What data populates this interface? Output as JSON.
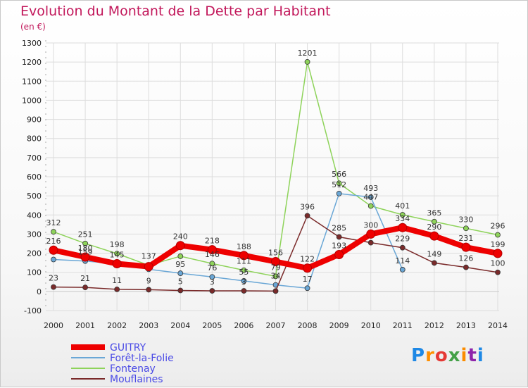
{
  "header": {
    "title": "Evolution du Montant de la Dette par Habitant",
    "subtitle": "(en €)"
  },
  "colors": {
    "title": "#c2185b",
    "axis_text": "#222222",
    "grid": "#dddddd"
  },
  "logo": {
    "text": "Proxiti",
    "letter_colors": [
      "#1e88e5",
      "#ff8f00",
      "#e53935",
      "#43a047",
      "#fb8c00",
      "#8e24aa",
      "#1e88e5"
    ]
  },
  "chart_data": {
    "type": "line",
    "x": [
      "2000",
      "2001",
      "2002",
      "2003",
      "2004",
      "2005",
      "2006",
      "2007",
      "2008",
      "2009",
      "2010",
      "2011",
      "2012",
      "2013",
      "2014"
    ],
    "yticks": [
      -100,
      0,
      100,
      200,
      300,
      400,
      500,
      600,
      700,
      800,
      900,
      1000,
      1100,
      1200,
      1300
    ],
    "ylim": [
      -100,
      1300
    ],
    "grid": true,
    "legend_position": "bottom-left",
    "series": [
      {
        "name": "Fontenay",
        "color": "#8ed35a",
        "line_width": 1.5,
        "values": [
          312,
          251,
          198,
          137,
          184,
          146,
          111,
          79,
          1201,
          566,
          447,
          401,
          365,
          330,
          296
        ],
        "labels": [
          "312",
          "251",
          "198",
          "137",
          "",
          "146",
          "111",
          "79",
          "1201",
          "566",
          "447",
          "401",
          "365",
          "330",
          "296"
        ]
      },
      {
        "name": "Forêt-la-Folie",
        "color": "#6aa7d6",
        "line_width": 1.5,
        "values": [
          167,
          159,
          145,
          116,
          95,
          76,
          55,
          34,
          17,
          512,
          493,
          114,
          null,
          null,
          null
        ],
        "labels": [
          "",
          "159",
          "145",
          "",
          "95",
          "76",
          "55",
          "34",
          "17",
          "512",
          "493",
          "114",
          "",
          "",
          ""
        ]
      },
      {
        "name": "Mouflaines",
        "color": "#7a2a2a",
        "line_width": 1.5,
        "values": [
          23,
          21,
          11,
          9,
          5,
          3,
          3,
          2,
          396,
          285,
          255,
          229,
          149,
          126,
          100
        ],
        "labels": [
          "23",
          "21",
          "11",
          "9",
          "5",
          "3",
          "3",
          "",
          "396",
          "285",
          "",
          "229",
          "149",
          "126",
          "100"
        ]
      },
      {
        "name": "GUITRY",
        "color": "#ee0000",
        "line_width": 8,
        "values": [
          216,
          180,
          145,
          130,
          240,
          218,
          188,
          156,
          122,
          193,
          300,
          334,
          290,
          231,
          199
        ],
        "labels": [
          "216",
          "180",
          "",
          "",
          "240",
          "218",
          "188",
          "156",
          "122",
          "193",
          "300",
          "334",
          "290",
          "231",
          "199"
        ]
      }
    ],
    "legend_order": [
      "GUITRY",
      "Forêt-la-Folie",
      "Fontenay",
      "Mouflaines"
    ]
  }
}
